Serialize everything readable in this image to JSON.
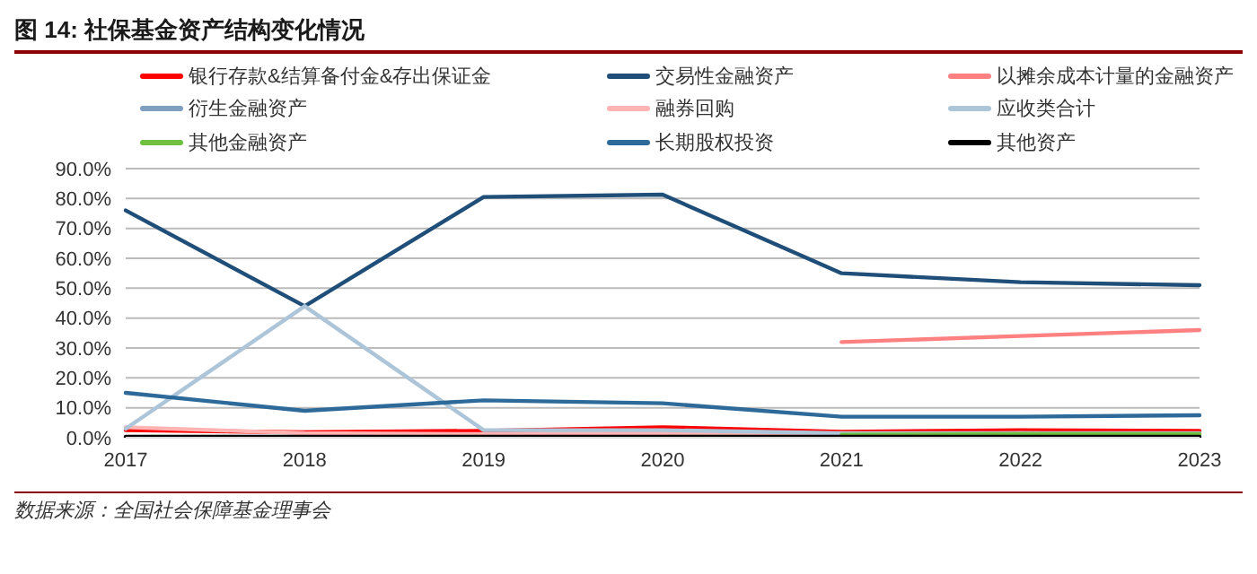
{
  "chart_data": {
    "type": "line",
    "title": "图 14: 社保基金资产结构变化情况",
    "categories": [
      "2017",
      "2018",
      "2019",
      "2020",
      "2021",
      "2022",
      "2023"
    ],
    "series": [
      {
        "name": "银行存款&结算备付金&存出保证金",
        "color": "#ff0000",
        "values": [
          2.5,
          1.8,
          2.3,
          3.5,
          2.0,
          2.5,
          2.3
        ]
      },
      {
        "name": "交易性金融资产",
        "color": "#1f4e79",
        "values": [
          76,
          44,
          80.5,
          81.3,
          55,
          52,
          51
        ]
      },
      {
        "name": "以摊余成本计量的金融资产",
        "color": "#ff8080",
        "values": [
          null,
          null,
          null,
          null,
          32,
          34,
          36
        ]
      },
      {
        "name": "衍生金融资产",
        "color": "#7f9fbf",
        "values": [
          null,
          null,
          null,
          null,
          null,
          null,
          null
        ]
      },
      {
        "name": "融券回购",
        "color": "#ffb3b3",
        "values": [
          3.5,
          1.5,
          1.2,
          1.5,
          1.0,
          1.5,
          1.0
        ]
      },
      {
        "name": "应收类合计",
        "color": "#adc5d8",
        "values": [
          3,
          44,
          2.5,
          2.5,
          1.5,
          1.5,
          1.5
        ]
      },
      {
        "name": "其他金融资产",
        "color": "#70c040",
        "values": [
          null,
          null,
          null,
          null,
          1.0,
          1.2,
          1.2
        ]
      },
      {
        "name": "长期股权投资",
        "color": "#2e6a99",
        "values": [
          15,
          9,
          12.5,
          11.5,
          7,
          7,
          7.5
        ]
      },
      {
        "name": "其他资产",
        "color": "#000000",
        "values": [
          0.3,
          0.3,
          0.3,
          0.3,
          0.3,
          0.3,
          0.3
        ]
      }
    ],
    "ylim": [
      0,
      90
    ],
    "yticks": [
      {
        "value": 0,
        "label": "0.0%"
      },
      {
        "value": 10,
        "label": "10.0%"
      },
      {
        "value": 20,
        "label": "20.0%"
      },
      {
        "value": 30,
        "label": "30.0%"
      },
      {
        "value": 40,
        "label": "40.0%"
      },
      {
        "value": 50,
        "label": "50.0%"
      },
      {
        "value": 60,
        "label": "60.0%"
      },
      {
        "value": 70,
        "label": "70.0%"
      },
      {
        "value": 80,
        "label": "80.0%"
      },
      {
        "value": 90,
        "label": "90.0%"
      }
    ],
    "grid": "y",
    "legend": "top",
    "marker": "none",
    "line_style": "solid",
    "annotations": [
      "数据来源：全国社会保障基金理事会"
    ]
  }
}
